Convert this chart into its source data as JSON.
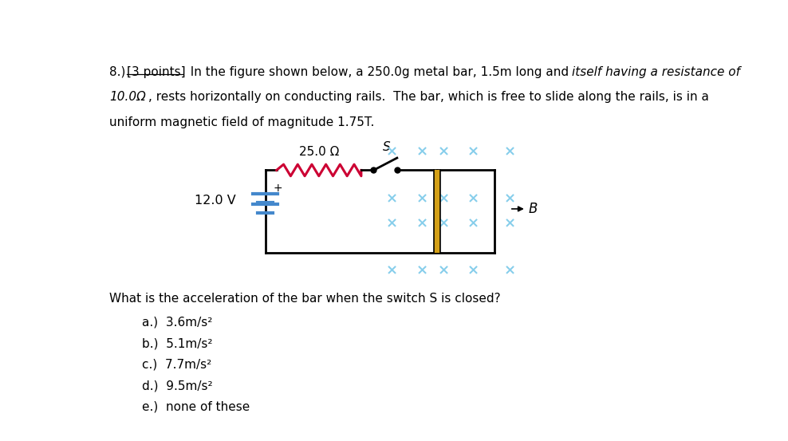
{
  "line1a": "8.) ",
  "line1b": "[3 points]",
  "line1c": "  In the figure shown below, a 250.0g metal bar, 1.5m long and ",
  "line1d": "itself having a resistance of",
  "line2a": "10.0Ω",
  "line2b": ", rests horizontally on conducting rails.  The bar, which is free to slide along the rails, is in a",
  "line3": "uniform magnetic field of magnitude 1.75T.",
  "question": "What is the acceleration of the bar when the switch S is closed?",
  "choices": [
    "a.)  3.6m/s²",
    "b.)  5.1m/s²",
    "c.)  7.7m/s²",
    "d.)  9.5m/s²",
    "e.)  none of these"
  ],
  "resistor_label": "25.0 Ω",
  "voltage_label": "12.0 V",
  "switch_label": "S",
  "bg_color": "#ffffff",
  "resistor_color": "#cc0033",
  "bar_color": "#d4a017",
  "cross_color": "#87ceeb",
  "battery_color": "#4488cc"
}
